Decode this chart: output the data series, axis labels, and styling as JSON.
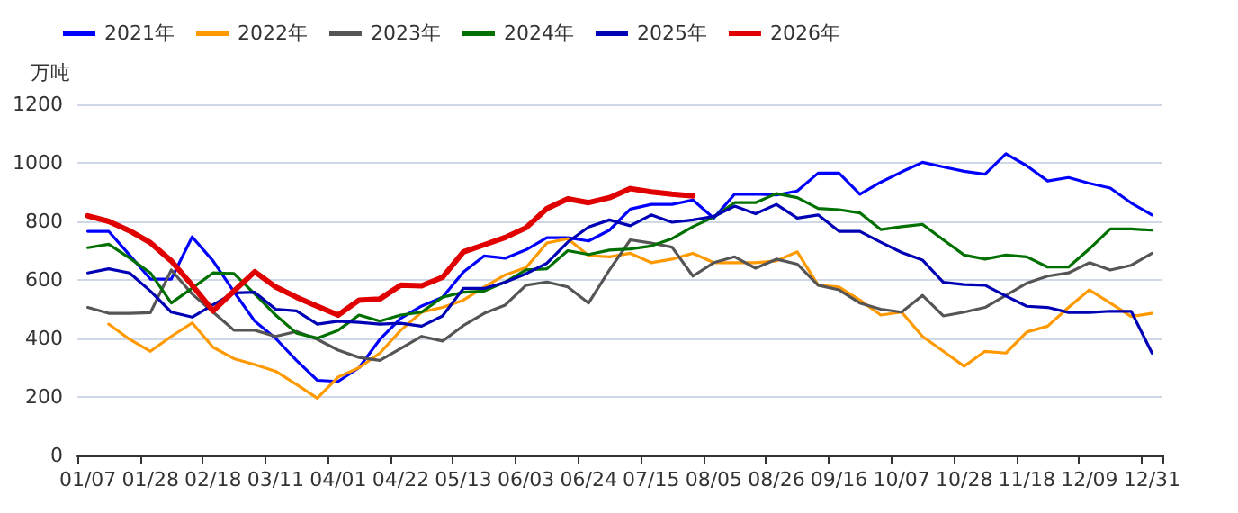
{
  "chart_data": {
    "type": "line",
    "ylabel": "万吨",
    "categories": [
      "01/07",
      null,
      null,
      "01/28",
      null,
      null,
      "02/18",
      null,
      null,
      "03/11",
      null,
      null,
      "04/01",
      null,
      null,
      "04/22",
      null,
      null,
      "05/13",
      null,
      null,
      "06/03",
      null,
      null,
      "06/24",
      null,
      null,
      "07/15",
      null,
      null,
      "08/05",
      null,
      null,
      "08/26",
      null,
      null,
      "09/16",
      null,
      null,
      "10/07",
      null,
      null,
      "10/28",
      null,
      null,
      "11/18",
      null,
      null,
      "12/09",
      null,
      null,
      "12/31"
    ],
    "ylim": [
      0,
      1200
    ],
    "yticks": [
      0,
      200,
      400,
      600,
      800,
      1000,
      1200
    ],
    "grid": "y",
    "legend": "top left",
    "marker": "none",
    "line_style": "solid",
    "series": [
      {
        "name": "2021年",
        "color": "#0000ff",
        "values": [
          766,
          766,
          685,
          603,
          603,
          747,
          665,
          560,
          459,
          400,
          325,
          257,
          253,
          300,
          397,
          469,
          511,
          541,
          627,
          682,
          674,
          703,
          744,
          744,
          733,
          770,
          842,
          858,
          858,
          873,
          811,
          893,
          893,
          890,
          904,
          965,
          965,
          893,
          934,
          969,
          1002,
          986,
          971,
          961,
          1031,
          990,
          938,
          950,
          930,
          914,
          863,
          822
        ]
      },
      {
        "name": "2022年",
        "color": "#ff9900",
        "values": [
          null,
          449,
          397,
          356,
          407,
          453,
          370,
          331,
          311,
          288,
          243,
          196,
          268,
          300,
          350,
          428,
          490,
          506,
          531,
          576,
          617,
          642,
          726,
          741,
          683,
          679,
          691,
          659,
          671,
          691,
          659,
          659,
          659,
          665,
          696,
          582,
          576,
          531,
          480,
          490,
          407,
          356,
          305,
          356,
          350,
          422,
          442,
          506,
          566,
          521,
          475,
          486
        ]
      },
      {
        "name": "2023年",
        "color": "#555555",
        "values": [
          506,
          486,
          486,
          488,
          634,
          552,
          490,
          428,
          428,
          407,
          424,
          397,
          360,
          335,
          325,
          366,
          407,
          391,
          444,
          486,
          514,
          582,
          593,
          576,
          521,
          634,
          737,
          726,
          712,
          613,
          659,
          679,
          640,
          671,
          654,
          582,
          566,
          521,
          500,
          490,
          547,
          477,
          490,
          506,
          547,
          589,
          613,
          624,
          659,
          634,
          650,
          691
        ]
      },
      {
        "name": "2024年",
        "color": "#007000",
        "values": [
          710,
          722,
          675,
          624,
          521,
          572,
          624,
          622,
          552,
          480,
          418,
          401,
          428,
          480,
          459,
          480,
          490,
          541,
          558,
          562,
          593,
          634,
          638,
          700,
          687,
          702,
          706,
          716,
          741,
          782,
          815,
          864,
          864,
          895,
          881,
          844,
          840,
          829,
          772,
          782,
          790,
          737,
          685,
          671,
          685,
          679,
          644,
          644,
          706,
          774,
          774,
          770
        ]
      },
      {
        "name": "2025年",
        "color": "#0000b4",
        "values": [
          624,
          638,
          624,
          562,
          490,
          473,
          515,
          556,
          558,
          500,
          494,
          449,
          459,
          455,
          449,
          452,
          442,
          477,
          571,
          571,
          592,
          621,
          657,
          729,
          781,
          805,
          785,
          822,
          797,
          805,
          817,
          852,
          826,
          858,
          811,
          822,
          766,
          766,
          729,
          694,
          668,
          592,
          584,
          582,
          545,
          510,
          506,
          489,
          489,
          493,
          493,
          350
        ]
      },
      {
        "name": "2026年",
        "color": "#e00000",
        "values": [
          819,
          800,
          768,
          727,
          665,
          582,
          494,
          562,
          628,
          576,
          541,
          510,
          480,
          531,
          535,
          582,
          580,
          609,
          696,
          720,
          745,
          778,
          844,
          877,
          864,
          881,
          912,
          901,
          893,
          887,
          null,
          null,
          null,
          null,
          null,
          null,
          null,
          null,
          null,
          null,
          null,
          null,
          null,
          null,
          null,
          null,
          null,
          null,
          null,
          null,
          null,
          null
        ]
      }
    ]
  }
}
